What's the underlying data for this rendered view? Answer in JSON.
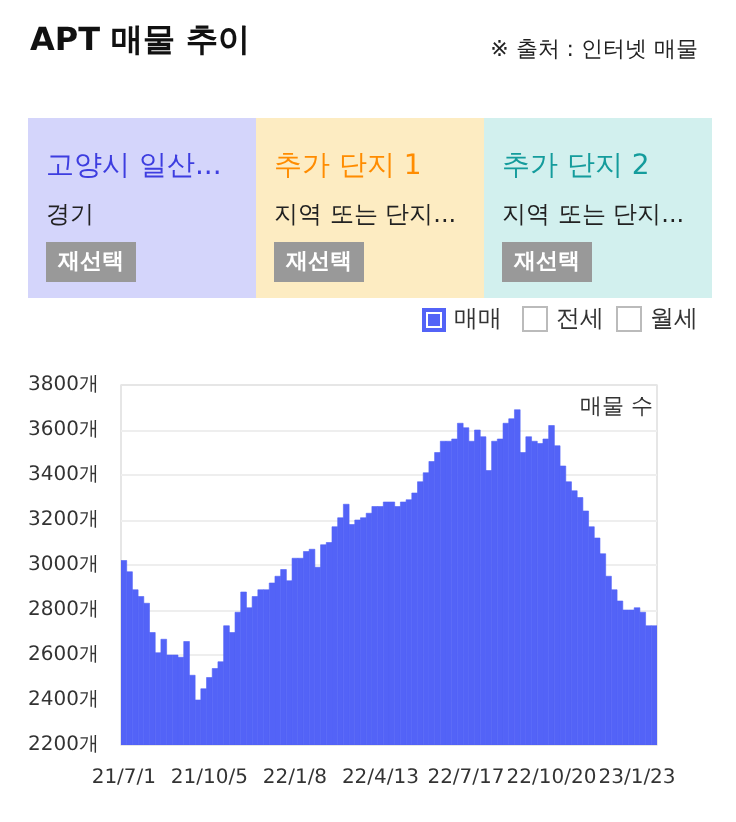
{
  "chart_data": {
    "type": "bar",
    "title": "APT 매물 추이",
    "annotations": [
      "※ 출처 : 인터넷 매물",
      "고양시 일산...",
      "경기",
      "재선택",
      "추가 단지 1",
      "지역 또는 단지...",
      "재선택",
      "추가 단지 2",
      "지역 또는 단지...",
      "재선택",
      "전세",
      "월세"
    ],
    "ylabel": "매물 수",
    "categories": [
      "21/7/1",
      null,
      null,
      null,
      null,
      null,
      null,
      null,
      null,
      null,
      null,
      null,
      null,
      null,
      null,
      "21/10/5",
      null,
      null,
      null,
      null,
      null,
      null,
      null,
      null,
      null,
      null,
      null,
      null,
      null,
      null,
      "22/1/8",
      null,
      null,
      null,
      null,
      null,
      null,
      null,
      null,
      null,
      null,
      null,
      null,
      null,
      null,
      "22/4/13",
      null,
      null,
      null,
      null,
      null,
      null,
      null,
      null,
      null,
      null,
      null,
      null,
      null,
      null,
      "22/7/17",
      null,
      null,
      null,
      null,
      null,
      null,
      null,
      null,
      null,
      null,
      null,
      null,
      null,
      null,
      "22/10/20",
      null,
      null,
      null,
      null,
      null,
      null,
      null,
      null,
      null,
      null,
      null,
      null,
      null,
      null,
      "23/1/23",
      null,
      null,
      null
    ],
    "series": [
      {
        "name": "매매",
        "color": "#5363f7",
        "values": [
          3020,
          2970,
          2890,
          2860,
          2830,
          2700,
          2610,
          2670,
          2600,
          2600,
          2590,
          2660,
          2510,
          2400,
          2450,
          2500,
          2540,
          2570,
          2730,
          2700,
          2790,
          2880,
          2810,
          2860,
          2890,
          2890,
          2920,
          2950,
          2980,
          2930,
          3030,
          3030,
          3060,
          3070,
          2990,
          3090,
          3100,
          3170,
          3210,
          3270,
          3180,
          3200,
          3210,
          3230,
          3260,
          3260,
          3280,
          3280,
          3260,
          3280,
          3290,
          3320,
          3370,
          3410,
          3460,
          3500,
          3550,
          3550,
          3560,
          3630,
          3610,
          3550,
          3600,
          3570,
          3420,
          3550,
          3560,
          3630,
          3650,
          3690,
          3500,
          3570,
          3550,
          3540,
          3560,
          3620,
          3530,
          3440,
          3370,
          3330,
          3300,
          3240,
          3170,
          3120,
          3050,
          2950,
          2890,
          2840,
          2800,
          2800,
          2810,
          2790,
          2730,
          2730
        ]
      }
    ],
    "ylim": [
      2200,
      3800
    ],
    "yticks": [
      {
        "value": 2200,
        "label": "2200개"
      },
      {
        "value": 2400,
        "label": "2400개"
      },
      {
        "value": 2600,
        "label": "2600개"
      },
      {
        "value": 2800,
        "label": "2800개"
      },
      {
        "value": 3000,
        "label": "3000개"
      },
      {
        "value": 3200,
        "label": "3200개"
      },
      {
        "value": 3400,
        "label": "3400개"
      },
      {
        "value": 3600,
        "label": "3600개"
      },
      {
        "value": 3800,
        "label": "3800개"
      }
    ],
    "grid": "y",
    "legend": "top right"
  }
}
